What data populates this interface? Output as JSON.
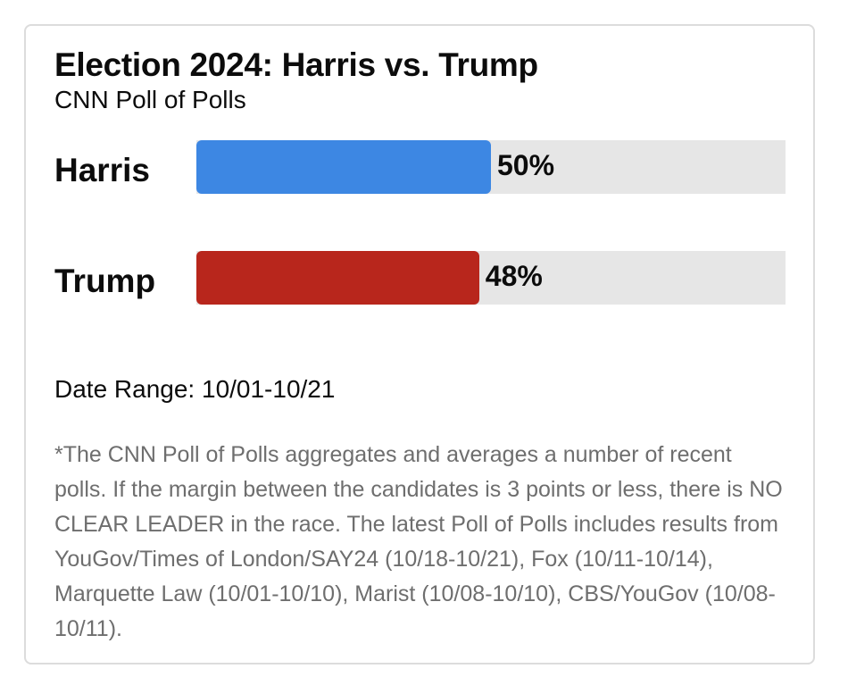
{
  "chart_data": {
    "type": "bar",
    "orientation": "horizontal",
    "title": "Election 2024: Harris vs. Trump",
    "subtitle": "CNN Poll of Polls",
    "categories": [
      "Harris",
      "Trump"
    ],
    "values": [
      50,
      48
    ],
    "value_labels": [
      "50%",
      "48%"
    ],
    "colors": [
      "#3d87e3",
      "#b8261c"
    ],
    "track_color": "#e6e6e6",
    "xlim": [
      0,
      100
    ],
    "grid": false
  },
  "date_range": "Date Range: 10/01-10/21",
  "footnote": "*The CNN Poll of Polls aggregates and averages a number of recent polls. If the margin between the candidates is 3 points or less, there is NO CLEAR LEADER in the race. The latest Poll of Polls includes results from YouGov/Times of London/SAY24 (10/18-10/21), Fox (10/11-10/14), Marquette Law (10/01-10/10), Marist (10/08-10/10), CBS/YouGov (10/08-10/11)."
}
